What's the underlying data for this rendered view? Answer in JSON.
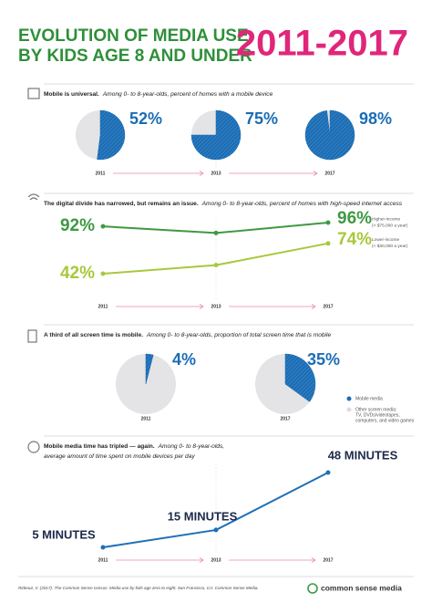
{
  "header": {
    "title_lines": [
      "EVOLUTION OF MEDIA USE",
      "BY KIDS AGE 8 AND UNDER"
    ],
    "years": "2011-2017"
  },
  "chart_data": [
    {
      "type": "pie",
      "title": "Mobile is universal.",
      "subtitle": [
        "Among 0- to 8-year-olds, percent of homes with a mobile device"
      ],
      "categories": [
        "2011",
        "2013",
        "2017"
      ],
      "values": [
        52,
        75,
        98
      ],
      "value_labels": [
        "52%",
        "75%",
        "98%"
      ],
      "color": "#1b6db4",
      "rest_color": "#e4e4e6"
    },
    {
      "type": "line",
      "title": "The digital divide has narrowed, but remains an issue.",
      "subtitle": [
        "Among 0- to 8-year-olds, percent of homes with high-speed internet access"
      ],
      "categories": [
        "2011",
        "2013",
        "2017"
      ],
      "series": [
        {
          "name": "Higher-income",
          "detail": "(> $75,000 a year)",
          "color": "#3d9a42",
          "values": [
            92,
            85,
            96
          ],
          "value_labels": [
            "92%",
            null,
            "96%"
          ]
        },
        {
          "name": "Lower-income",
          "detail": "(< $30,000 a year)",
          "color": "#a8c83c",
          "values": [
            42,
            51,
            74
          ],
          "value_labels": [
            "42%",
            null,
            "74%"
          ]
        }
      ]
    },
    {
      "type": "pie",
      "title": "A third of all screen time is mobile.",
      "subtitle": [
        "Among 0- to 8-year-olds, proportion of total screen time that is mobile"
      ],
      "categories": [
        "2011",
        "2017"
      ],
      "values": [
        4,
        35
      ],
      "value_labels": [
        "4%",
        "35%"
      ],
      "color": "#1b6db4",
      "rest_color": "#e4e4e6",
      "legend": [
        {
          "name": [
            "Mobile media"
          ],
          "color": "#1b6db4"
        },
        {
          "name": [
            "Other screen media:",
            "TV, DVDs/videotapes,",
            "computers, and video games"
          ],
          "color": "#dcdcde"
        }
      ]
    },
    {
      "type": "line",
      "title": "Mobile media time has tripled — again.",
      "subtitle": [
        "Among 0- to 8-year-olds,",
        "average amount of time spent on mobile devices per day"
      ],
      "categories": [
        "2011",
        "2013",
        "2017"
      ],
      "series": [
        {
          "color": "#1f6fb6",
          "values": [
            5,
            15,
            48
          ],
          "value_labels": [
            "5 MINUTES",
            "15 MINUTES",
            "48 MINUTES"
          ]
        }
      ]
    }
  ],
  "footer": {
    "citation": "Rideout, V. (2017). The Common Sense census: Media use by kids age zero to eight. San Francisco, CA: Common Sense Media.",
    "logo": "common sense media"
  }
}
